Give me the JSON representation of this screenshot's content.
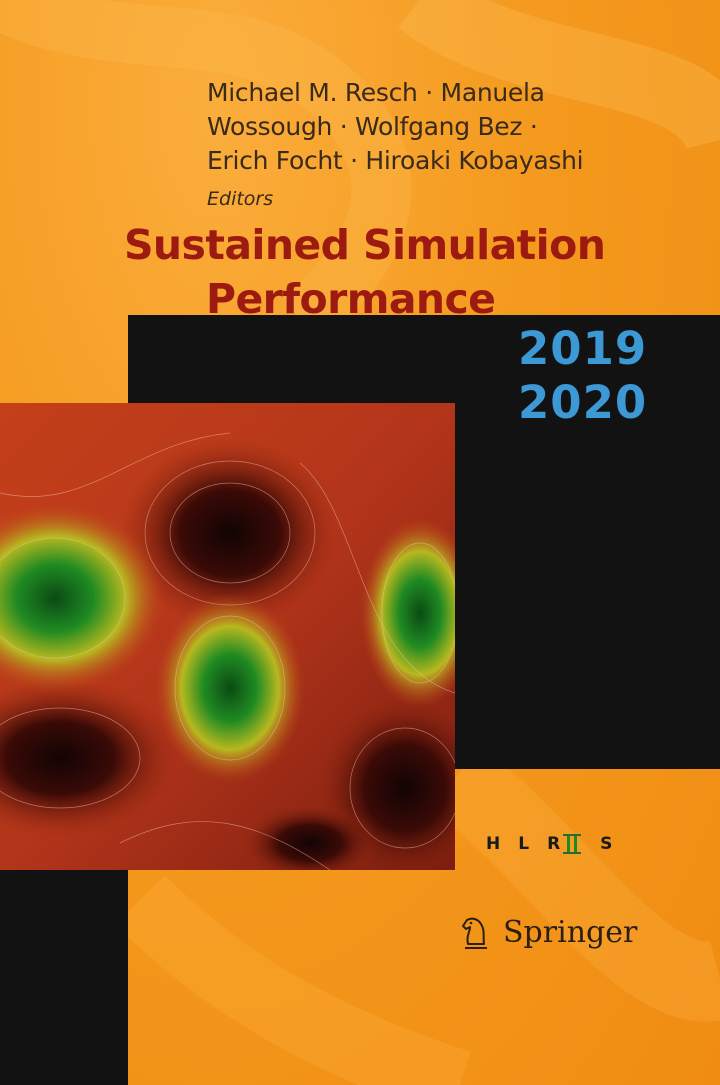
{
  "authors": {
    "line1": "Michael M. Resch · Manuela",
    "line2": "Wossough · Wolfgang Bez ·",
    "line3": "Erich Focht · Hiroaki Kobayashi",
    "role": "Editors"
  },
  "title": {
    "line1": "Sustained Simulation",
    "line2": "Performance"
  },
  "years": {
    "first": "2019",
    "second": "2020"
  },
  "logos": {
    "hlrs": {
      "h": "H",
      "l": "L",
      "r": "R",
      "s": "S",
      "icon": "hlrs-logo"
    },
    "publisher": {
      "name": "Springer",
      "icon": "knight-chess-icon"
    }
  },
  "colors": {
    "background": "#f5961c",
    "title": "#9c1a10",
    "year": "#3d98d6",
    "band": "#121212"
  }
}
